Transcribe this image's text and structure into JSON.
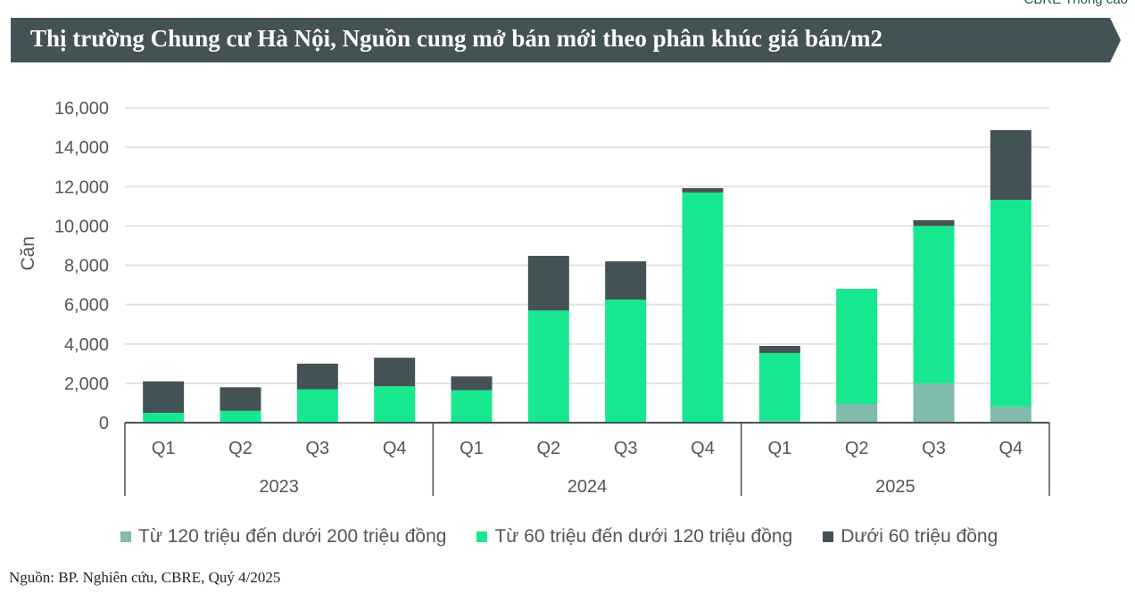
{
  "header": {
    "brand": "CBRE Thông cáo",
    "title": "Thị trường Chung cư Hà Nội, Nguồn cung mở bán mới theo phân khúc giá bán/m2"
  },
  "source": "Nguồn: BP. Nghiên cứu, CBRE, Quý 4/2025",
  "colors": {
    "banner": "#435254",
    "teal": "#80bbad",
    "green": "#17e88f",
    "dark": "#435254"
  },
  "chart_data": {
    "type": "bar",
    "stacked": true,
    "title": "",
    "ylabel": "Căn",
    "xlabel": "",
    "ylim": [
      0,
      16000
    ],
    "yticks": [
      "0",
      "2,000",
      "4,000",
      "6,000",
      "8,000",
      "10,000",
      "12,000",
      "14,000",
      "16,000"
    ],
    "grid": true,
    "legend_position": "bottom",
    "groups": [
      {
        "label": "2023",
        "categories": [
          "Q1",
          "Q2",
          "Q3",
          "Q4"
        ]
      },
      {
        "label": "2024",
        "categories": [
          "Q1",
          "Q2",
          "Q3",
          "Q4"
        ]
      },
      {
        "label": "2025",
        "categories": [
          "Q1",
          "Q2",
          "Q3",
          "Q4"
        ]
      }
    ],
    "series": [
      {
        "name": "Từ 120 triệu đến dưới 200 triệu đồng",
        "color": "#80bbad",
        "values": [
          0,
          0,
          0,
          0,
          0,
          0,
          0,
          0,
          100,
          950,
          2000,
          820
        ]
      },
      {
        "name": "Từ 60 triệu đến dưới 120 triệu đồng",
        "color": "#17e88f",
        "values": [
          500,
          600,
          1700,
          1850,
          1650,
          5700,
          6250,
          11700,
          3440,
          5850,
          8000,
          10510
        ]
      },
      {
        "name": "Dưới 60 triệu đồng",
        "color": "#435254",
        "values": [
          1600,
          1200,
          1300,
          1450,
          700,
          2780,
          1950,
          220,
          360,
          0,
          290,
          3540
        ]
      }
    ]
  }
}
